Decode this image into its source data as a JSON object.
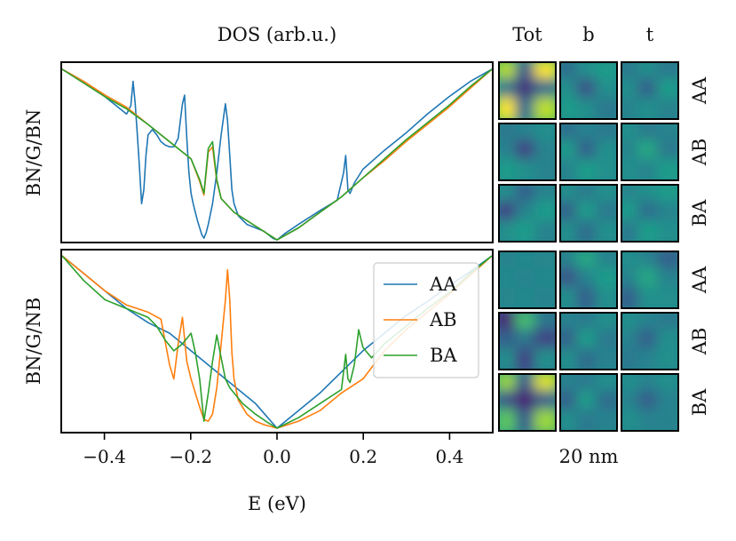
{
  "chart_data": [
    {
      "type": "line",
      "title": "DOS (arb.u.)",
      "ylabel": "BN/G/BN",
      "xlabel": "",
      "xlim": [
        -0.5,
        0.5
      ],
      "ylim": [
        0,
        1
      ],
      "yticks": "none",
      "legend": "none",
      "series": [
        {
          "name": "AA",
          "color": "#1f77b4",
          "x": [
            -0.5,
            -0.45,
            -0.42,
            -0.38,
            -0.35,
            -0.34,
            -0.335,
            -0.33,
            -0.325,
            -0.32,
            -0.315,
            -0.31,
            -0.305,
            -0.3,
            -0.29,
            -0.28,
            -0.27,
            -0.26,
            -0.25,
            -0.24,
            -0.23,
            -0.22,
            -0.215,
            -0.21,
            -0.205,
            -0.2,
            -0.195,
            -0.19,
            -0.185,
            -0.18,
            -0.175,
            -0.17,
            -0.165,
            -0.16,
            -0.15,
            -0.14,
            -0.13,
            -0.12,
            -0.115,
            -0.11,
            -0.105,
            -0.1,
            -0.09,
            -0.07,
            -0.05,
            -0.03,
            -0.01,
            0.0,
            0.02,
            0.05,
            0.1,
            0.14,
            0.155,
            0.16,
            0.165,
            0.17,
            0.18,
            0.2,
            0.25,
            0.3,
            0.35,
            0.4,
            0.45,
            0.5
          ],
          "y": [
            1.0,
            0.93,
            0.88,
            0.8,
            0.74,
            0.79,
            0.93,
            0.8,
            0.62,
            0.43,
            0.22,
            0.3,
            0.5,
            0.62,
            0.65,
            0.62,
            0.58,
            0.56,
            0.55,
            0.55,
            0.6,
            0.8,
            0.85,
            0.6,
            0.4,
            0.28,
            0.22,
            0.17,
            0.12,
            0.08,
            0.04,
            0.02,
            0.05,
            0.1,
            0.22,
            0.4,
            0.62,
            0.8,
            0.7,
            0.5,
            0.3,
            0.22,
            0.15,
            0.1,
            0.08,
            0.06,
            0.02,
            0.01,
            0.05,
            0.1,
            0.18,
            0.24,
            0.4,
            0.5,
            0.3,
            0.28,
            0.34,
            0.42,
            0.53,
            0.63,
            0.74,
            0.84,
            0.93,
            1.0
          ]
        },
        {
          "name": "AB",
          "color": "#ff7f0e",
          "x": [
            -0.5,
            -0.45,
            -0.4,
            -0.35,
            -0.3,
            -0.25,
            -0.22,
            -0.2,
            -0.18,
            -0.17,
            -0.16,
            -0.15,
            -0.14,
            -0.13,
            -0.1,
            -0.05,
            0.0,
            0.05,
            0.1,
            0.15,
            0.2,
            0.25,
            0.3,
            0.35,
            0.4,
            0.45,
            0.5
          ],
          "y": [
            1.0,
            0.93,
            0.85,
            0.78,
            0.68,
            0.58,
            0.52,
            0.48,
            0.35,
            0.27,
            0.52,
            0.55,
            0.35,
            0.25,
            0.17,
            0.09,
            0.01,
            0.08,
            0.17,
            0.26,
            0.37,
            0.47,
            0.58,
            0.68,
            0.78,
            0.89,
            1.0
          ]
        },
        {
          "name": "BA",
          "color": "#2ca02c",
          "x": [
            -0.5,
            -0.45,
            -0.4,
            -0.35,
            -0.3,
            -0.25,
            -0.22,
            -0.2,
            -0.18,
            -0.17,
            -0.16,
            -0.15,
            -0.14,
            -0.13,
            -0.1,
            -0.05,
            0.0,
            0.05,
            0.1,
            0.15,
            0.2,
            0.25,
            0.3,
            0.35,
            0.4,
            0.45,
            0.5
          ],
          "y": [
            1.0,
            0.92,
            0.84,
            0.77,
            0.68,
            0.58,
            0.52,
            0.48,
            0.36,
            0.28,
            0.54,
            0.58,
            0.36,
            0.25,
            0.17,
            0.09,
            0.01,
            0.08,
            0.17,
            0.26,
            0.37,
            0.48,
            0.59,
            0.69,
            0.79,
            0.9,
            1.0
          ]
        }
      ]
    },
    {
      "type": "line",
      "title": "",
      "ylabel": "BN/G/NB",
      "xlabel": "E (eV)",
      "xlim": [
        -0.5,
        0.5
      ],
      "ylim": [
        0,
        1
      ],
      "xticks": [
        -0.4,
        -0.2,
        0.0,
        0.2,
        0.4
      ],
      "xtick_labels": [
        "−0.4",
        "−0.2",
        "0.0",
        "0.2",
        "0.4"
      ],
      "yticks": "none",
      "legend": "right",
      "series": [
        {
          "name": "AA",
          "color": "#1f77b4",
          "x": [
            -0.5,
            -0.45,
            -0.4,
            -0.35,
            -0.3,
            -0.25,
            -0.2,
            -0.15,
            -0.1,
            -0.05,
            0.0,
            0.05,
            0.1,
            0.15,
            0.2,
            0.25,
            0.3,
            0.35,
            0.4,
            0.45,
            0.5
          ],
          "y": [
            1.0,
            0.9,
            0.8,
            0.7,
            0.62,
            0.56,
            0.46,
            0.36,
            0.26,
            0.16,
            0.02,
            0.12,
            0.22,
            0.34,
            0.46,
            0.56,
            0.66,
            0.74,
            0.83,
            0.91,
            1.0
          ]
        },
        {
          "name": "AB",
          "color": "#ff7f0e",
          "x": [
            -0.5,
            -0.45,
            -0.4,
            -0.35,
            -0.3,
            -0.27,
            -0.25,
            -0.24,
            -0.23,
            -0.22,
            -0.21,
            -0.2,
            -0.19,
            -0.18,
            -0.17,
            -0.16,
            -0.15,
            -0.14,
            -0.13,
            -0.12,
            -0.115,
            -0.11,
            -0.105,
            -0.1,
            -0.09,
            -0.07,
            -0.05,
            -0.03,
            0.0,
            0.05,
            0.1,
            0.15,
            0.2,
            0.25,
            0.3,
            0.35,
            0.4,
            0.45,
            0.5
          ],
          "y": [
            1.0,
            0.9,
            0.8,
            0.72,
            0.68,
            0.64,
            0.38,
            0.3,
            0.5,
            0.65,
            0.4,
            0.3,
            0.22,
            0.14,
            0.07,
            0.06,
            0.1,
            0.25,
            0.5,
            0.75,
            0.92,
            0.75,
            0.45,
            0.3,
            0.18,
            0.1,
            0.06,
            0.04,
            0.02,
            0.06,
            0.12,
            0.22,
            0.3,
            0.46,
            0.58,
            0.68,
            0.78,
            0.89,
            1.0
          ]
        },
        {
          "name": "BA",
          "color": "#2ca02c",
          "x": [
            -0.5,
            -0.45,
            -0.4,
            -0.35,
            -0.3,
            -0.28,
            -0.26,
            -0.24,
            -0.22,
            -0.2,
            -0.19,
            -0.18,
            -0.17,
            -0.16,
            -0.15,
            -0.14,
            -0.13,
            -0.12,
            -0.11,
            -0.1,
            -0.08,
            -0.05,
            -0.02,
            0.0,
            0.05,
            0.1,
            0.15,
            0.16,
            0.165,
            0.17,
            0.18,
            0.19,
            0.2,
            0.21,
            0.22,
            0.25,
            0.3,
            0.35,
            0.4,
            0.45,
            0.5
          ],
          "y": [
            1.0,
            0.86,
            0.75,
            0.7,
            0.65,
            0.6,
            0.52,
            0.46,
            0.5,
            0.56,
            0.45,
            0.3,
            0.06,
            0.22,
            0.4,
            0.55,
            0.42,
            0.3,
            0.25,
            0.22,
            0.16,
            0.1,
            0.05,
            0.02,
            0.08,
            0.16,
            0.24,
            0.44,
            0.3,
            0.28,
            0.38,
            0.58,
            0.48,
            0.45,
            0.42,
            0.5,
            0.6,
            0.7,
            0.79,
            0.9,
            1.0
          ]
        }
      ]
    },
    {
      "type": "heatmap",
      "column_labels": [
        "Tot",
        "b",
        "t"
      ],
      "row_labels": [
        "AA",
        "AB",
        "BA",
        "AA",
        "AB",
        "BA"
      ],
      "groups": [
        "BN/G/BN",
        "BN/G/BN",
        "BN/G/BN",
        "BN/G/NB",
        "BN/G/NB",
        "BN/G/NB"
      ],
      "scale_label": "20 nm",
      "colormap": "viridis",
      "grid": 3,
      "panels": [
        [
          [
            [
              0.9,
              0.3,
              1.0
            ],
            [
              0.4,
              0.15,
              0.35
            ],
            [
              1.0,
              0.35,
              0.9
            ]
          ],
          [
            [
              0.35,
              0.5,
              0.55
            ],
            [
              0.5,
              0.25,
              0.5
            ],
            [
              0.55,
              0.5,
              0.4
            ]
          ],
          [
            [
              0.4,
              0.5,
              0.4
            ],
            [
              0.5,
              0.3,
              0.55
            ],
            [
              0.45,
              0.5,
              0.45
            ]
          ]
        ],
        [
          [
            [
              0.4,
              0.45,
              0.5
            ],
            [
              0.45,
              0.2,
              0.45
            ],
            [
              0.55,
              0.5,
              0.45
            ]
          ],
          [
            [
              0.35,
              0.45,
              0.4
            ],
            [
              0.55,
              0.3,
              0.5
            ],
            [
              0.45,
              0.55,
              0.5
            ]
          ],
          [
            [
              0.5,
              0.4,
              0.45
            ],
            [
              0.45,
              0.6,
              0.4
            ],
            [
              0.5,
              0.45,
              0.55
            ]
          ]
        ],
        [
          [
            [
              0.5,
              0.3,
              0.45
            ],
            [
              0.2,
              0.45,
              0.55
            ],
            [
              0.5,
              0.55,
              0.45
            ]
          ],
          [
            [
              0.5,
              0.4,
              0.5
            ],
            [
              0.3,
              0.55,
              0.4
            ],
            [
              0.5,
              0.35,
              0.5
            ]
          ],
          [
            [
              0.45,
              0.5,
              0.55
            ],
            [
              0.55,
              0.35,
              0.45
            ],
            [
              0.4,
              0.55,
              0.5
            ]
          ]
        ],
        [
          [
            [
              0.45,
              0.47,
              0.46
            ],
            [
              0.47,
              0.45,
              0.47
            ],
            [
              0.46,
              0.47,
              0.45
            ]
          ],
          [
            [
              0.45,
              0.6,
              0.45
            ],
            [
              0.25,
              0.45,
              0.55
            ],
            [
              0.5,
              0.3,
              0.5
            ]
          ],
          [
            [
              0.5,
              0.45,
              0.3
            ],
            [
              0.45,
              0.6,
              0.45
            ],
            [
              0.3,
              0.5,
              0.5
            ]
          ]
        ],
        [
          [
            [
              0.1,
              0.7,
              0.4
            ],
            [
              0.3,
              0.4,
              0.2
            ],
            [
              0.5,
              0.2,
              0.5
            ]
          ],
          [
            [
              0.45,
              0.4,
              0.5
            ],
            [
              0.3,
              0.55,
              0.4
            ],
            [
              0.5,
              0.35,
              0.45
            ]
          ],
          [
            [
              0.5,
              0.45,
              0.4
            ],
            [
              0.45,
              0.3,
              0.5
            ],
            [
              0.4,
              0.45,
              0.5
            ]
          ]
        ],
        [
          [
            [
              0.85,
              0.3,
              0.95
            ],
            [
              0.25,
              0.1,
              0.3
            ],
            [
              0.75,
              0.3,
              0.85
            ]
          ],
          [
            [
              0.45,
              0.4,
              0.5
            ],
            [
              0.3,
              0.55,
              0.35
            ],
            [
              0.5,
              0.4,
              0.45
            ]
          ],
          [
            [
              0.5,
              0.45,
              0.5
            ],
            [
              0.45,
              0.3,
              0.45
            ],
            [
              0.5,
              0.45,
              0.45
            ]
          ]
        ]
      ]
    }
  ]
}
